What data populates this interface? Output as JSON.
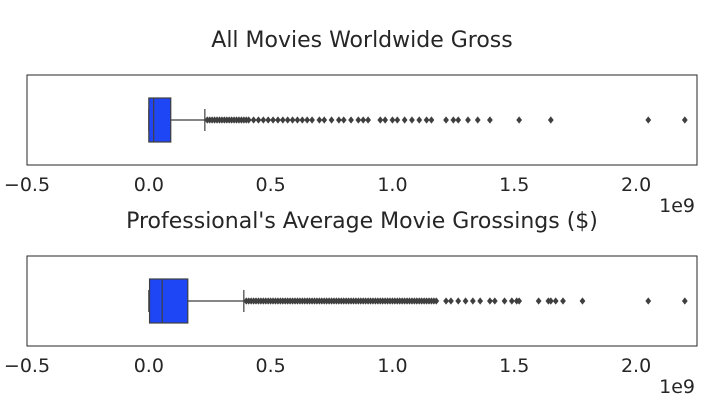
{
  "chart_data": [
    {
      "type": "box",
      "title": "All Movies Worldwide Gross",
      "orientation": "horizontal",
      "xlim": [
        -0.5,
        2.25
      ],
      "x_ticks": [
        -0.5,
        0.0,
        0.5,
        1.0,
        1.5,
        2.0
      ],
      "x_tick_labels": [
        "−0.5",
        "0.0",
        "0.5",
        "1.0",
        "1.5",
        "2.0"
      ],
      "x_scale_label": "1e9",
      "box_color": "#1f46f5",
      "grid": false,
      "stats": {
        "whisker_low": 0.0,
        "q1": 0.0,
        "median": 0.02,
        "q3": 0.09,
        "whisker_high": 0.23
      },
      "outliers": [
        0.24,
        0.25,
        0.26,
        0.27,
        0.28,
        0.29,
        0.3,
        0.31,
        0.32,
        0.33,
        0.34,
        0.35,
        0.36,
        0.37,
        0.38,
        0.39,
        0.4,
        0.41,
        0.43,
        0.45,
        0.47,
        0.49,
        0.51,
        0.53,
        0.55,
        0.57,
        0.59,
        0.61,
        0.63,
        0.65,
        0.67,
        0.7,
        0.72,
        0.75,
        0.78,
        0.8,
        0.83,
        0.86,
        0.88,
        0.9,
        0.95,
        0.97,
        1.0,
        1.02,
        1.05,
        1.08,
        1.11,
        1.14,
        1.16,
        1.22,
        1.25,
        1.27,
        1.31,
        1.35,
        1.4,
        1.52,
        1.65,
        2.05,
        2.2
      ]
    },
    {
      "type": "box",
      "title": "Professional's Average Movie Grossings ($)",
      "orientation": "horizontal",
      "xlim": [
        -0.5,
        2.25
      ],
      "x_ticks": [
        -0.5,
        0.0,
        0.5,
        1.0,
        1.5,
        2.0
      ],
      "x_tick_labels": [
        "−0.5",
        "0.0",
        "0.5",
        "1.0",
        "1.5",
        "2.0"
      ],
      "x_scale_label": "1e9",
      "box_color": "#1f46f5",
      "grid": false,
      "stats": {
        "whisker_low": 0.0,
        "q1": 0.003,
        "median": 0.055,
        "q3": 0.16,
        "whisker_high": 0.39
      },
      "outliers": [
        0.4,
        0.41,
        0.42,
        0.43,
        0.44,
        0.45,
        0.46,
        0.47,
        0.48,
        0.49,
        0.5,
        0.51,
        0.52,
        0.53,
        0.54,
        0.55,
        0.56,
        0.57,
        0.58,
        0.59,
        0.6,
        0.61,
        0.62,
        0.63,
        0.64,
        0.65,
        0.66,
        0.67,
        0.68,
        0.69,
        0.7,
        0.71,
        0.72,
        0.73,
        0.74,
        0.75,
        0.76,
        0.77,
        0.78,
        0.79,
        0.8,
        0.81,
        0.82,
        0.83,
        0.84,
        0.85,
        0.86,
        0.87,
        0.88,
        0.89,
        0.9,
        0.91,
        0.92,
        0.93,
        0.94,
        0.95,
        0.96,
        0.97,
        0.98,
        0.99,
        1.0,
        1.01,
        1.02,
        1.03,
        1.04,
        1.05,
        1.06,
        1.07,
        1.08,
        1.09,
        1.1,
        1.11,
        1.12,
        1.13,
        1.14,
        1.15,
        1.16,
        1.17,
        1.18,
        1.22,
        1.24,
        1.27,
        1.3,
        1.33,
        1.36,
        1.4,
        1.42,
        1.46,
        1.49,
        1.51,
        1.52,
        1.6,
        1.64,
        1.65,
        1.67,
        1.7,
        1.78,
        2.05,
        2.2
      ]
    }
  ]
}
